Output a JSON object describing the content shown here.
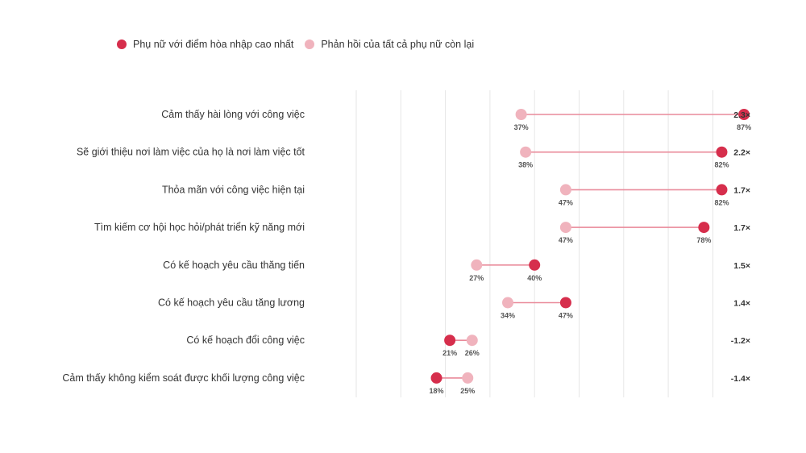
{
  "chart_data": {
    "type": "dumbbell",
    "colors": {
      "top": "#d62e4c",
      "rest": "#f0b3bd",
      "connector": "#e98a9a",
      "grid": "#e6e6e6"
    },
    "legend": [
      {
        "label": "Phụ nữ với điểm hòa nhập cao nhất",
        "series": "top"
      },
      {
        "label": "Phản hồi của tất cả phụ nữ còn lại",
        "series": "rest"
      }
    ],
    "xlim": [
      0,
      90
    ],
    "grid": true,
    "rows": [
      {
        "label": "Cảm thấy hài lòng với công việc",
        "top": 87,
        "rest": 37,
        "top_label": "87%",
        "rest_label": "37%",
        "ratio": "2.3×"
      },
      {
        "label": "Sẽ giới thiệu nơi làm việc của họ là nơi làm việc tốt",
        "top": 82,
        "rest": 38,
        "top_label": "82%",
        "rest_label": "38%",
        "ratio": "2.2×"
      },
      {
        "label": "Thỏa mãn với công việc hiện tại",
        "top": 82,
        "rest": 47,
        "top_label": "82%",
        "rest_label": "47%",
        "ratio": "1.7×"
      },
      {
        "label": "Tìm kiếm cơ hội học hỏi/phát triển kỹ năng mới",
        "top": 78,
        "rest": 47,
        "top_label": "78%",
        "rest_label": "47%",
        "ratio": "1.7×"
      },
      {
        "label": "Có kế hoạch yêu cầu thăng tiến",
        "top": 40,
        "rest": 27,
        "top_label": "40%",
        "rest_label": "27%",
        "ratio": "1.5×"
      },
      {
        "label": "Có kế hoạch yêu cầu tăng lương",
        "top": 47,
        "rest": 34,
        "top_label": "47%",
        "rest_label": "34%",
        "ratio": "1.4×"
      },
      {
        "label": "Có kế hoạch đổi công việc",
        "top": 21,
        "rest": 26,
        "top_label": "21%",
        "rest_label": "26%",
        "ratio": "-1.2×"
      },
      {
        "label": "Cảm thấy không kiểm soát được khối lượng công việc",
        "top": 18,
        "rest": 25,
        "top_label": "18%",
        "rest_label": "25%",
        "ratio": "-1.4×"
      }
    ]
  }
}
